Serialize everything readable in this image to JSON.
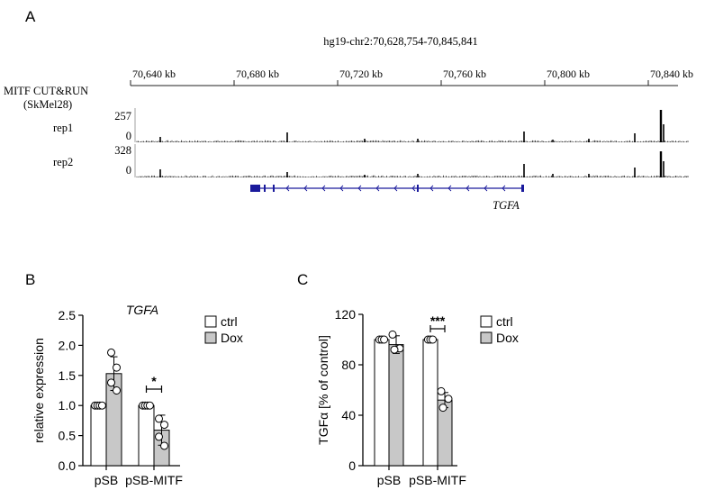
{
  "panels": {
    "a": "A",
    "b": "B",
    "c": "C"
  },
  "genome_track": {
    "coordinates": "hg19-chr2:70,628,754-70,845,841",
    "track_title_line1": "MITF CUT&RUN",
    "track_title_line2": "(SkMel28)",
    "axis_ticks": [
      "70,640 kb",
      "70,680 kb",
      "70,720 kb",
      "70,760 kb",
      "70,800 kb",
      "70,840 kb"
    ],
    "tracks": [
      {
        "label": "rep1",
        "max": "257",
        "min": "0"
      },
      {
        "label": "rep2",
        "max": "328",
        "min": "0"
      }
    ],
    "gene_name": "TGFA",
    "colors": {
      "gene": "#1a1a9c",
      "signal": "#000000"
    }
  },
  "chart_data": [
    {
      "type": "bar",
      "title": "TGFA",
      "ylabel": "relative expression",
      "xlabel": "",
      "ylim": [
        0,
        2.5
      ],
      "yticks": [
        "0.0",
        "0.5",
        "1.0",
        "1.5",
        "2.0",
        "2.5"
      ],
      "categories": [
        "pSB",
        "pSB-MITF"
      ],
      "series": [
        {
          "name": "ctrl",
          "values": [
            1.0,
            1.0
          ],
          "errors": [
            0.02,
            0.02
          ],
          "color": "#ffffff",
          "points": [
            [
              1.0,
              1.0,
              1.0,
              1.0
            ],
            [
              1.0,
              1.0,
              1.0,
              1.0
            ]
          ]
        },
        {
          "name": "Dox",
          "values": [
            1.53,
            0.59
          ],
          "errors": [
            0.28,
            0.25
          ],
          "color": "#c8c8c8",
          "points": [
            [
              1.88,
              1.63,
              1.38,
              1.25
            ],
            [
              0.78,
              0.68,
              0.48,
              0.33
            ]
          ]
        }
      ],
      "significance": [
        {
          "category": "pSB-MITF",
          "label": "*"
        }
      ],
      "legend_position": "top-right"
    },
    {
      "type": "bar",
      "title": "",
      "ylabel": "TGFα  [% of control]",
      "xlabel": "",
      "ylim": [
        0,
        120
      ],
      "yticks": [
        "0",
        "40",
        "80",
        "120"
      ],
      "categories": [
        "pSB",
        "pSB-MITF"
      ],
      "series": [
        {
          "name": "ctrl",
          "values": [
            100,
            100
          ],
          "errors": [
            1,
            1
          ],
          "color": "#ffffff",
          "points": [
            [
              100,
              100,
              100
            ],
            [
              100,
              100,
              100
            ]
          ]
        },
        {
          "name": "Dox",
          "values": [
            96,
            52
          ],
          "errors": [
            7,
            6
          ],
          "color": "#c8c8c8",
          "points": [
            [
              104,
              93,
              92
            ],
            [
              59,
              53,
              46
            ]
          ]
        }
      ],
      "significance": [
        {
          "category": "pSB-MITF",
          "label": "***"
        }
      ],
      "legend_position": "top-right"
    }
  ]
}
